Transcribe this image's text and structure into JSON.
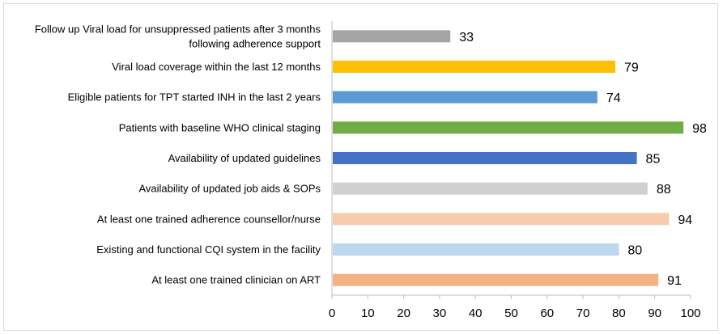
{
  "chart_data": {
    "type": "bar",
    "orientation": "horizontal",
    "title": "",
    "xlabel": "",
    "ylabel": "",
    "xlim": [
      0,
      100
    ],
    "x_ticks": [
      0,
      10,
      20,
      30,
      40,
      50,
      60,
      70,
      80,
      90,
      100
    ],
    "grid": false,
    "legend": "none",
    "categories": [
      [
        "Follow up Viral load for unsuppressed patients after 3 months",
        "following adherence support"
      ],
      [
        "Viral load coverage within the last 12 months"
      ],
      [
        "Eligible patients for TPT started INH in the last 2 years"
      ],
      [
        "Patients with baseline WHO clinical staging"
      ],
      [
        "Availability of updated guidelines"
      ],
      [
        "Availability of updated job aids & SOPs"
      ],
      [
        "At least one trained adherence counsellor/nurse"
      ],
      [
        "Existing and functional CQI system in the facility"
      ],
      [
        "At least one trained clinician on ART"
      ]
    ],
    "values": [
      33,
      79,
      74,
      98,
      85,
      88,
      94,
      80,
      91
    ],
    "colors": [
      "#a5a5a5",
      "#ffc000",
      "#5b9bd5",
      "#70ad47",
      "#4472c4",
      "#d0d0d0",
      "#f8cbad",
      "#bdd7ee",
      "#f4b183"
    ]
  }
}
